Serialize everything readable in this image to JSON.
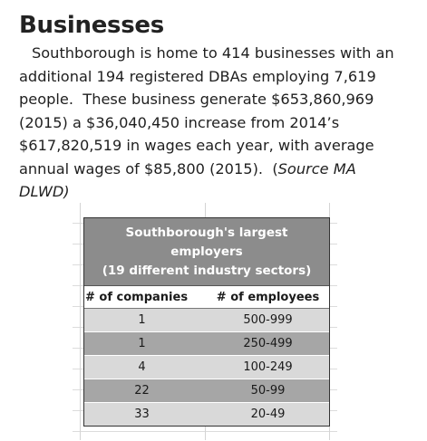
{
  "heading": "Businesses",
  "paragraph": {
    "text": "Southborough is home to 414 businesses with an additional 194 registered DBAs employing 7,619 people.  These business generate $653,860,969 (2015) a $36,040,450 increase from 2014’s $617,820,519 in wages each year, with average annual wages of $85,800 (2015).  (",
    "source": "Source MA DLWD)"
  },
  "employers_table": {
    "title_line1": "Southborough's largest employers",
    "title_line2": "(19 different industry sectors)",
    "headers": [
      "# of companies",
      "# of employees"
    ],
    "rows": [
      {
        "companies": "1",
        "employees": "500-999"
      },
      {
        "companies": "1",
        "employees": "250-499"
      },
      {
        "companies": "4",
        "employees": "100-249"
      },
      {
        "companies": "22",
        "employees": "50-99"
      },
      {
        "companies": "33",
        "employees": "20-49"
      }
    ]
  },
  "colors": {
    "title_bg": "#8c8c8c",
    "row_light": "#d9d9d9",
    "row_dark": "#a6a6a6"
  }
}
